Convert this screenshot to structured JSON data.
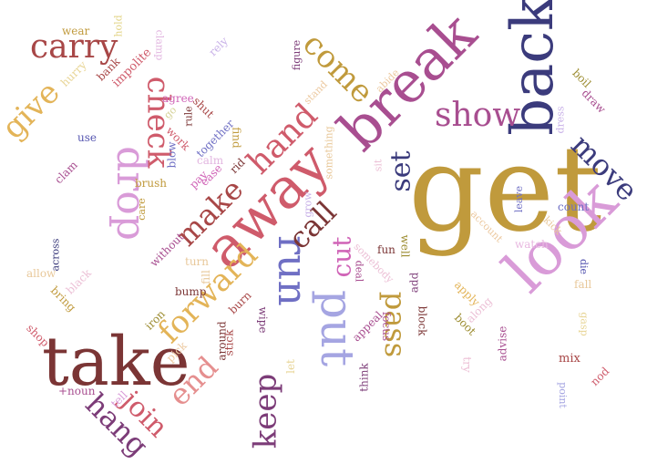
{
  "words": [
    {
      "text": "get",
      "color": "#c09a3c"
    },
    {
      "text": "take",
      "color": "#7b3535"
    },
    {
      "text": "back",
      "color": "#3b3b7c"
    },
    {
      "text": "break",
      "color": "#a84e90"
    },
    {
      "text": "look",
      "color": "#d99bd8"
    },
    {
      "text": "away",
      "color": "#cf5b6b"
    },
    {
      "text": "put",
      "color": "#a5a5e2"
    },
    {
      "text": "drop",
      "color": "#d99bd8"
    },
    {
      "text": "run",
      "color": "#6f6fc4"
    },
    {
      "text": "carry",
      "color": "#a84747"
    },
    {
      "text": "show",
      "color": "#a84e90"
    },
    {
      "text": "give",
      "color": "#e3b458"
    },
    {
      "text": "check",
      "color": "#cf5b6b"
    },
    {
      "text": "come",
      "color": "#c09a3c"
    },
    {
      "text": "move",
      "color": "#3b3b7c"
    },
    {
      "text": "hand",
      "color": "#cf5b6b"
    },
    {
      "text": "forward",
      "color": "#e3b458"
    },
    {
      "text": "make",
      "color": "#a84747"
    },
    {
      "text": "call",
      "color": "#7b3535"
    },
    {
      "text": "cut",
      "color": "#d064b7"
    },
    {
      "text": "set",
      "color": "#3b3b7c"
    },
    {
      "text": "pass",
      "color": "#c09a3c"
    },
    {
      "text": "keep",
      "color": "#7c3c78"
    },
    {
      "text": "hang",
      "color": "#7c3c78"
    },
    {
      "text": "join",
      "color": "#cf5b6b"
    },
    {
      "text": "end",
      "color": "#e58f8f"
    },
    {
      "text": "wear",
      "color": "#c09a3c"
    },
    {
      "text": "hold",
      "color": "#e3d58a"
    },
    {
      "text": "hurry",
      "color": "#e8d596"
    },
    {
      "text": "bank",
      "color": "#a84747"
    },
    {
      "text": "impolite",
      "color": "#cf5b6b"
    },
    {
      "text": "clamp",
      "color": "#e2b6e0"
    },
    {
      "text": "rely",
      "color": "#c9b2e8"
    },
    {
      "text": "figure",
      "color": "#7c3c78"
    },
    {
      "text": "boil",
      "color": "#9c8c30"
    },
    {
      "text": "draw",
      "color": "#a84e90"
    },
    {
      "text": "dress",
      "color": "#c9b2e8"
    },
    {
      "text": "abide",
      "color": "#ecc9a0"
    },
    {
      "text": "stand",
      "color": "#ecc9a0"
    },
    {
      "text": "agree",
      "color": "#d064b7"
    },
    {
      "text": "go",
      "color": "#d6d39a"
    },
    {
      "text": "rule",
      "color": "#7b3535"
    },
    {
      "text": "shut",
      "color": "#a84747"
    },
    {
      "text": "use",
      "color": "#5555b0"
    },
    {
      "text": "work",
      "color": "#cf5b6b"
    },
    {
      "text": "together",
      "color": "#6f6fc4"
    },
    {
      "text": "find",
      "color": "#c09a3c"
    },
    {
      "text": "calm",
      "color": "#e2b6e0"
    },
    {
      "text": "blow",
      "color": "#6f6fc4"
    },
    {
      "text": "clam",
      "color": "#a84e90"
    },
    {
      "text": "ease",
      "color": "#d064b7"
    },
    {
      "text": "rid",
      "color": "#7b3535"
    },
    {
      "text": "pay",
      "color": "#d064b7"
    },
    {
      "text": "brush",
      "color": "#c09a3c"
    },
    {
      "text": "care",
      "color": "#c09a3c"
    },
    {
      "text": "grow",
      "color": "#c9b2e8"
    },
    {
      "text": "something",
      "color": "#e8c89a"
    },
    {
      "text": "sit",
      "color": "#ecc0d6"
    },
    {
      "text": "leave",
      "color": "#6f6fc4"
    },
    {
      "text": "account",
      "color": "#ecc9a0"
    },
    {
      "text": "count",
      "color": "#6f6fc4"
    },
    {
      "text": "kick",
      "color": "#e8c89a"
    },
    {
      "text": "watch",
      "color": "#e8b8e0"
    },
    {
      "text": "die",
      "color": "#5555b0"
    },
    {
      "text": "fall",
      "color": "#e8c89a"
    },
    {
      "text": "across",
      "color": "#3b3b7c"
    },
    {
      "text": "without",
      "color": "#a84e90"
    },
    {
      "text": "turn",
      "color": "#e8c89a"
    },
    {
      "text": "allow",
      "color": "#e8c89a"
    },
    {
      "text": "black",
      "color": "#ecc0d6"
    },
    {
      "text": "bring",
      "color": "#c09a3c"
    },
    {
      "text": "fill",
      "color": "#e8c89a"
    },
    {
      "text": "bump",
      "color": "#7b3535"
    },
    {
      "text": "burn",
      "color": "#a84747"
    },
    {
      "text": "somebody",
      "color": "#ecc0d6"
    },
    {
      "text": "fun",
      "color": "#7b3535"
    },
    {
      "text": "well",
      "color": "#9c8c30"
    },
    {
      "text": "deal",
      "color": "#a84e90"
    },
    {
      "text": "add",
      "color": "#7c3c78"
    },
    {
      "text": "apply",
      "color": "#e3b458"
    },
    {
      "text": "along",
      "color": "#ecc0d6"
    },
    {
      "text": "gasp",
      "color": "#e8d596"
    },
    {
      "text": "shop",
      "color": "#cf5b6b"
    },
    {
      "text": "iron",
      "color": "#9c8c30"
    },
    {
      "text": "pick",
      "color": "#ecc9a0"
    },
    {
      "text": "around",
      "color": "#7b3535"
    },
    {
      "text": "stick",
      "color": "#a84747"
    },
    {
      "text": "wipe",
      "color": "#7c3c78"
    },
    {
      "text": "let",
      "color": "#e8d596"
    },
    {
      "text": "focus",
      "color": "#a84e90"
    },
    {
      "text": "appeal",
      "color": "#a84e90"
    },
    {
      "text": "block",
      "color": "#7b3535"
    },
    {
      "text": "boot",
      "color": "#9c8c30"
    },
    {
      "text": "advise",
      "color": "#a84e90"
    },
    {
      "text": "mix",
      "color": "#a84747"
    },
    {
      "text": "try",
      "color": "#ecc0d6"
    },
    {
      "text": "think",
      "color": "#7c3c78"
    },
    {
      "text": "nod",
      "color": "#cf5b6b"
    },
    {
      "text": "point",
      "color": "#a5a5e2"
    },
    {
      "text": "+noun",
      "color": "#a84e90"
    },
    {
      "text": "tell",
      "color": "#d99bd8"
    }
  ]
}
